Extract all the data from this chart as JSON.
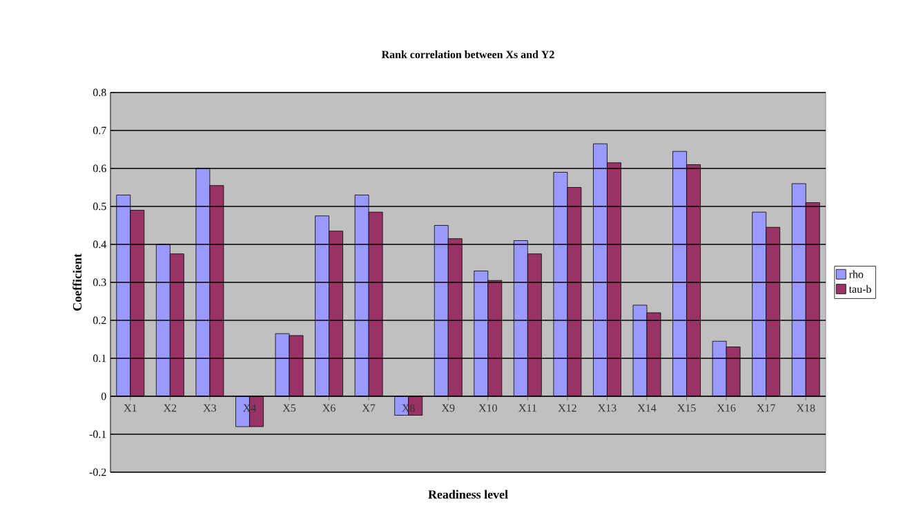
{
  "chart_data": {
    "type": "bar",
    "title": "Rank correlation between Xs and Y2",
    "xlabel": "Readiness level",
    "ylabel": "Coefficient",
    "categories": [
      "X1",
      "X2",
      "X3",
      "X4",
      "X5",
      "X6",
      "X7",
      "X8",
      "X9",
      "X10",
      "X11",
      "X12",
      "X13",
      "X14",
      "X15",
      "X16",
      "X17",
      "X18"
    ],
    "series": [
      {
        "name": "rho",
        "color": "#9999ff",
        "values": [
          0.53,
          0.4,
          0.6,
          -0.08,
          0.165,
          0.475,
          0.53,
          -0.05,
          0.45,
          0.33,
          0.41,
          0.59,
          0.665,
          0.24,
          0.645,
          0.145,
          0.485,
          0.56
        ]
      },
      {
        "name": "tau-b",
        "color": "#993366",
        "values": [
          0.49,
          0.375,
          0.555,
          -0.08,
          0.16,
          0.435,
          0.485,
          -0.05,
          0.415,
          0.305,
          0.375,
          0.55,
          0.615,
          0.22,
          0.61,
          0.13,
          0.445,
          0.51
        ]
      }
    ],
    "ylim": [
      -0.2,
      0.8
    ],
    "yticks": [
      -0.2,
      -0.1,
      0,
      0.1,
      0.2,
      0.3,
      0.4,
      0.5,
      0.6,
      0.7,
      0.8
    ],
    "grid": "y",
    "legend": "right"
  }
}
